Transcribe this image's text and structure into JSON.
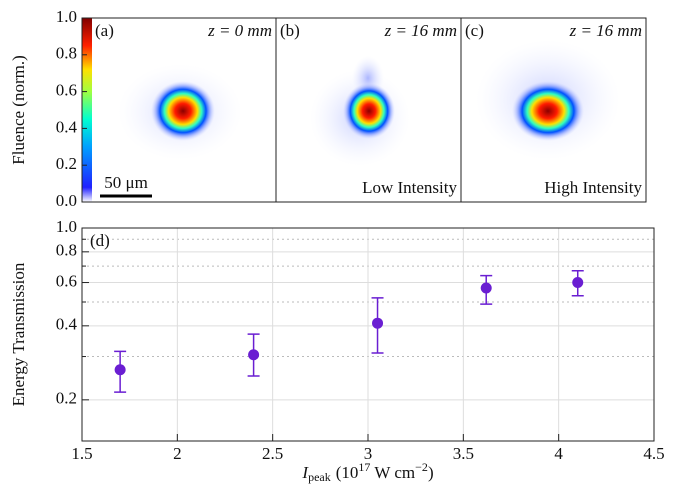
{
  "chart_data": [
    {
      "type": "image",
      "ylabel": "Fluence (norm.)",
      "ylim": [
        0,
        1
      ],
      "yticks": [
        {
          "value": 0,
          "label": "0.0"
        },
        0.2,
        0.4,
        0.6,
        0.8,
        {
          "value": 1,
          "label": "1.0"
        }
      ],
      "panels": [
        {
          "label": "(a)",
          "title": "z = 0 mm",
          "scalebar": "50 μm"
        },
        {
          "label": "(b)",
          "title": "z = 16 mm",
          "note": "Low Intensity"
        },
        {
          "label": "(c)",
          "title": "z = 16 mm",
          "note": "High Intensity"
        }
      ]
    },
    {
      "type": "scatter",
      "label": "(d)",
      "ylabel": "Energy Transmission",
      "xlabel_parts": [
        "I",
        "peak",
        "(10",
        "17",
        "W cm",
        "−2",
        ")"
      ],
      "color": "#6a1ed2",
      "log_y": true,
      "grid": true,
      "x": [
        1.7,
        2.4,
        3.05,
        3.62,
        4.1
      ],
      "values": [
        0.265,
        0.305,
        0.41,
        0.57,
        0.6
      ],
      "err_low": [
        0.215,
        0.25,
        0.31,
        0.49,
        0.53
      ],
      "err_high": [
        0.315,
        0.37,
        0.52,
        0.64,
        0.67
      ],
      "xlim": [
        1.5,
        4.5
      ],
      "xticks": [
        1.5,
        2,
        2.5,
        3,
        3.5,
        4,
        4.5
      ],
      "ylim": [
        0.136,
        1
      ],
      "yticks": [
        0.2,
        0.4,
        0.6,
        0.8,
        {
          "value": 1,
          "label": "1.0"
        }
      ],
      "yminor": [
        0.3,
        0.5,
        0.7,
        0.9
      ]
    }
  ]
}
